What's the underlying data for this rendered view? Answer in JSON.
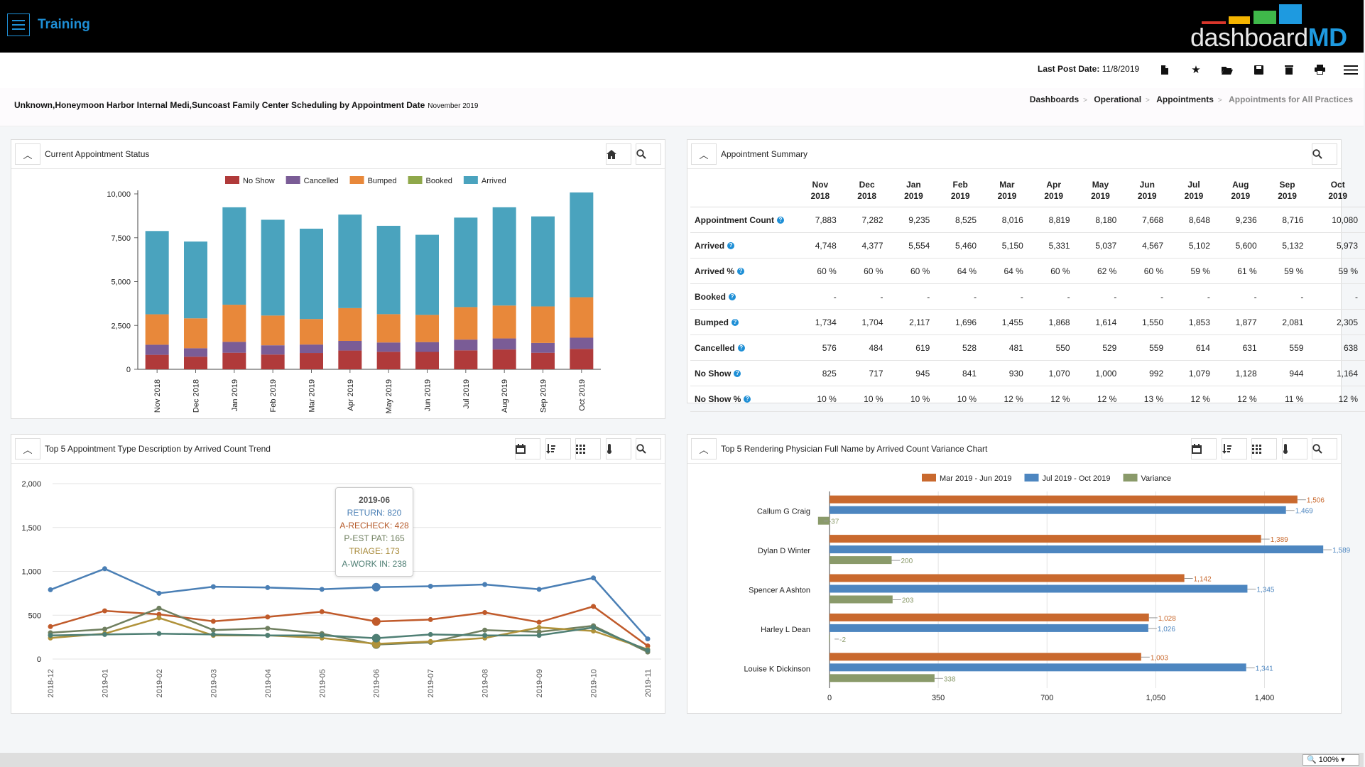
{
  "app": {
    "title": "Training"
  },
  "logo": {
    "text_main": "dashboard",
    "text_accent": "MD"
  },
  "toolbar": {
    "post_date_label": "Last Post Date:",
    "post_date_value": "11/8/2019",
    "icons": [
      "document-icon",
      "star-icon",
      "folder-open-icon",
      "save-icon",
      "trash-icon",
      "print-icon",
      "menu-icon"
    ]
  },
  "page": {
    "title": "Unknown,Honeymoon Harbor Internal Medi,Suncoast Family Center Scheduling by Appointment Date",
    "date": "November 2019"
  },
  "breadcrumb": [
    "Dashboards",
    "Operational",
    "Appointments",
    "Appointments for All Practices"
  ],
  "panels": {
    "status": {
      "title": "Current Appointment Status"
    },
    "summary": {
      "title": "Appointment Summary"
    },
    "trend": {
      "title": "Top 5 Appointment Type Description by Arrived Count Trend"
    },
    "variance": {
      "title": "Top 5 Rendering Physician Full Name by Arrived Count Variance Chart"
    }
  },
  "summary_table": {
    "columns": [
      [
        "Nov",
        "2018"
      ],
      [
        "Dec",
        "2018"
      ],
      [
        "Jan",
        "2019"
      ],
      [
        "Feb",
        "2019"
      ],
      [
        "Mar",
        "2019"
      ],
      [
        "Apr",
        "2019"
      ],
      [
        "May",
        "2019"
      ],
      [
        "Jun",
        "2019"
      ],
      [
        "Jul",
        "2019"
      ],
      [
        "Aug",
        "2019"
      ],
      [
        "Sep",
        "2019"
      ],
      [
        "Oct",
        "2019"
      ]
    ],
    "rows": [
      {
        "label": "Appointment Count",
        "values": [
          "7,883",
          "7,282",
          "9,235",
          "8,525",
          "8,016",
          "8,819",
          "8,180",
          "7,668",
          "8,648",
          "9,236",
          "8,716",
          "10,080"
        ]
      },
      {
        "label": "Arrived",
        "values": [
          "4,748",
          "4,377",
          "5,554",
          "5,460",
          "5,150",
          "5,331",
          "5,037",
          "4,567",
          "5,102",
          "5,600",
          "5,132",
          "5,973"
        ]
      },
      {
        "label": "Arrived %",
        "values": [
          "60 %",
          "60 %",
          "60 %",
          "64 %",
          "64 %",
          "60 %",
          "62 %",
          "60 %",
          "59 %",
          "61 %",
          "59 %",
          "59 %"
        ]
      },
      {
        "label": "Booked",
        "values": [
          "-",
          "-",
          "-",
          "-",
          "-",
          "-",
          "-",
          "-",
          "-",
          "-",
          "-",
          "-"
        ]
      },
      {
        "label": "Bumped",
        "values": [
          "1,734",
          "1,704",
          "2,117",
          "1,696",
          "1,455",
          "1,868",
          "1,614",
          "1,550",
          "1,853",
          "1,877",
          "2,081",
          "2,305"
        ]
      },
      {
        "label": "Cancelled",
        "values": [
          "576",
          "484",
          "619",
          "528",
          "481",
          "550",
          "529",
          "559",
          "614",
          "631",
          "559",
          "638"
        ]
      },
      {
        "label": "No Show",
        "values": [
          "825",
          "717",
          "945",
          "841",
          "930",
          "1,070",
          "1,000",
          "992",
          "1,079",
          "1,128",
          "944",
          "1,164"
        ]
      },
      {
        "label": "No Show %",
        "values": [
          "10 %",
          "10 %",
          "10 %",
          "10 %",
          "12 %",
          "12 %",
          "12 %",
          "13 %",
          "12 %",
          "12 %",
          "11 %",
          "12 %"
        ]
      }
    ]
  },
  "tooltip": {
    "title": "2019-06",
    "lines": [
      {
        "text": "RETURN: 820",
        "color": "#4a7fb5"
      },
      {
        "text": "A-RECHECK: 428",
        "color": "#b55a2a"
      },
      {
        "text": "P-EST PAT: 165",
        "color": "#6f7f5f"
      },
      {
        "text": "TRIAGE: 173",
        "color": "#a88a3a"
      },
      {
        "text": "A-WORK IN: 238",
        "color": "#4f7f74"
      }
    ]
  },
  "chart_data": [
    {
      "type": "bar",
      "stacked": true,
      "categories": [
        "Nov 2018",
        "Dec 2018",
        "Jan 2019",
        "Feb 2019",
        "Mar 2019",
        "Apr 2019",
        "May 2019",
        "Jun 2019",
        "Jul 2019",
        "Aug 2019",
        "Sep 2019",
        "Oct 2019"
      ],
      "series": [
        {
          "name": "No Show",
          "color": "#b03a3a",
          "values": [
            825,
            717,
            945,
            841,
            930,
            1070,
            1000,
            992,
            1079,
            1128,
            944,
            1164
          ]
        },
        {
          "name": "Cancelled",
          "color": "#7a5c96",
          "values": [
            576,
            484,
            619,
            528,
            481,
            550,
            529,
            559,
            614,
            631,
            559,
            638
          ]
        },
        {
          "name": "Bumped",
          "color": "#e8883a",
          "values": [
            1734,
            1704,
            2117,
            1696,
            1455,
            1868,
            1614,
            1550,
            1853,
            1877,
            2081,
            2305
          ]
        },
        {
          "name": "Booked",
          "color": "#8fa84a",
          "values": [
            0,
            0,
            0,
            0,
            0,
            0,
            0,
            0,
            0,
            0,
            0,
            0
          ]
        },
        {
          "name": "Arrived",
          "color": "#4aa3be",
          "values": [
            4748,
            4377,
            5554,
            5460,
            5150,
            5331,
            5037,
            4567,
            5102,
            5600,
            5132,
            5973
          ]
        }
      ],
      "ylim": [
        0,
        10000
      ],
      "yticks": [
        0,
        2500,
        5000,
        7500,
        10000
      ],
      "ytick_labels": [
        "0",
        "2,500",
        "5,000",
        "7,500",
        "10,000"
      ],
      "legend": "top-center",
      "grid": false
    },
    {
      "type": "line",
      "x": [
        "2018-12",
        "2019-01",
        "2019-02",
        "2019-03",
        "2019-04",
        "2019-05",
        "2019-06",
        "2019-07",
        "2019-08",
        "2019-09",
        "2019-10",
        "2019-11"
      ],
      "series": [
        {
          "name": "RETURN",
          "color": "#4a7fb5",
          "values": [
            790,
            1030,
            750,
            825,
            815,
            795,
            820,
            830,
            850,
            795,
            925,
            230
          ]
        },
        {
          "name": "A-RECHECK",
          "color": "#c05a2a",
          "values": [
            370,
            550,
            510,
            430,
            480,
            540,
            428,
            450,
            530,
            420,
            600,
            150
          ]
        },
        {
          "name": "P-EST PAT",
          "color": "#6f7f5f",
          "values": [
            300,
            340,
            580,
            330,
            350,
            290,
            165,
            190,
            330,
            310,
            380,
            80
          ]
        },
        {
          "name": "TRIAGE",
          "color": "#b0923a",
          "values": [
            240,
            290,
            470,
            270,
            270,
            240,
            173,
            200,
            240,
            360,
            320,
            110
          ]
        },
        {
          "name": "A-WORK IN",
          "color": "#4f7f74",
          "values": [
            270,
            280,
            290,
            280,
            270,
            270,
            238,
            280,
            270,
            270,
            360,
            100
          ]
        }
      ],
      "ylim": [
        0,
        2000
      ],
      "yticks": [
        0,
        500,
        1000,
        1500,
        2000
      ],
      "ytick_labels": [
        "0",
        "500",
        "1,000",
        "1,500",
        "2,000"
      ],
      "grid": true
    },
    {
      "type": "bar",
      "orientation": "horizontal",
      "categories": [
        "Callum G Craig",
        "Dylan D Winter",
        "Spencer A Ashton",
        "Harley L Dean",
        "Louise K Dickinson"
      ],
      "series": [
        {
          "name": "Mar 2019 - Jun 2019",
          "color": "#c9692e",
          "values": [
            1506,
            1389,
            1142,
            1028,
            1003
          ],
          "labels": [
            "1,506",
            "1,389",
            "1,142",
            "1,028",
            "1,003"
          ]
        },
        {
          "name": "Jul 2019 - Oct 2019",
          "color": "#4d86c0",
          "values": [
            1469,
            1589,
            1345,
            1026,
            1341
          ],
          "labels": [
            "1,469",
            "1,589",
            "1,345",
            "1,026",
            "1,341"
          ]
        },
        {
          "name": "Variance",
          "color": "#8a9a6a",
          "values": [
            -37,
            200,
            203,
            -2,
            338
          ],
          "labels": [
            "-37",
            "200",
            "203",
            "-2",
            "338"
          ]
        }
      ],
      "xlim": [
        0,
        1600
      ],
      "xticks": [
        0,
        350,
        700,
        1050,
        1400
      ],
      "xtick_labels": [
        "0",
        "350",
        "700",
        "1,050",
        "1,400"
      ],
      "legend": "top-center",
      "grid": true
    }
  ],
  "zoom": {
    "label": "100%"
  }
}
